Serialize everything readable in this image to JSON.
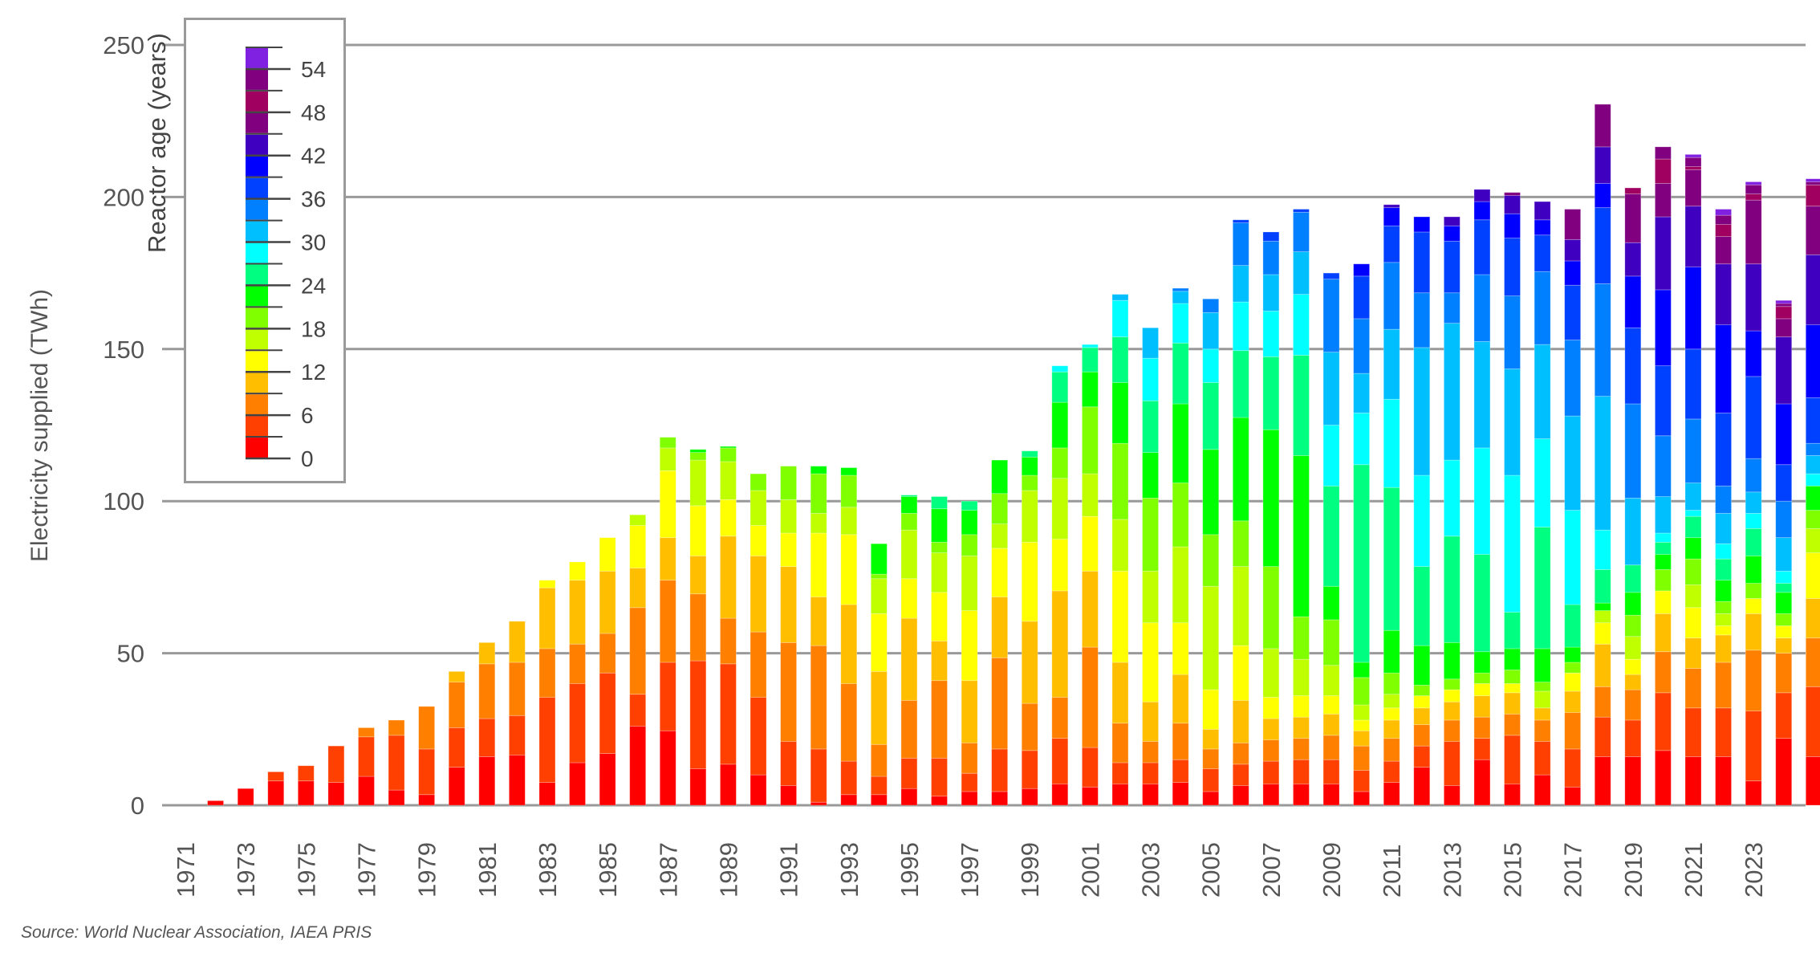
{
  "chart_data": {
    "type": "bar",
    "stacked": true,
    "title": "",
    "xlabel": "",
    "ylabel": "Electricity supplied (TWh)",
    "ylim": [
      0,
      250
    ],
    "yticks": [
      0,
      50,
      100,
      150,
      200,
      250
    ],
    "grid": true,
    "source": "Source: World Nuclear Association, IAEA PRIS",
    "legend": {
      "title": "Reactor age (years)",
      "position": "upper-left",
      "tick_labels": [
        "0",
        "6",
        "12",
        "18",
        "24",
        "30",
        "36",
        "42",
        "48",
        "54"
      ],
      "bins": [
        "0-2",
        "3-5",
        "6-8",
        "9-11",
        "12-14",
        "15-17",
        "18-20",
        "21-23",
        "24-26",
        "27-29",
        "30-32",
        "33-35",
        "36-38",
        "39-41",
        "42-44",
        "45-47",
        "48-50",
        "51-53",
        "54-56"
      ],
      "colors": [
        "#ff0000",
        "#ff4000",
        "#ff8000",
        "#ffbf00",
        "#ffff00",
        "#bfff00",
        "#80ff00",
        "#00ff00",
        "#00ff80",
        "#00ffff",
        "#00bfff",
        "#0080ff",
        "#0040ff",
        "#0000ff",
        "#4000c0",
        "#800080",
        "#a00060",
        "#800080",
        "#8020e0"
      ]
    },
    "x_tick_labels": [
      "1971",
      "1973",
      "1975",
      "1977",
      "1979",
      "1981",
      "1983",
      "1985",
      "1987",
      "1989",
      "1991",
      "1993",
      "1995",
      "1997",
      "1999",
      "2001",
      "2003",
      "2005",
      "2007",
      "2009",
      "2011",
      "2013",
      "2015",
      "2017",
      "2019",
      "2021",
      "2023"
    ],
    "categories": [
      "1971",
      "1972",
      "1973",
      "1974",
      "1975",
      "1976",
      "1977",
      "1978",
      "1979",
      "1980",
      "1981",
      "1982",
      "1983",
      "1984",
      "1985",
      "1986",
      "1987",
      "1988",
      "1989",
      "1990",
      "1991",
      "1992",
      "1993",
      "1994",
      "1995",
      "1996",
      "1997",
      "1998",
      "1999",
      "2000",
      "2001",
      "2002",
      "2003",
      "2004",
      "2005",
      "2006",
      "2007",
      "2008",
      "2009",
      "2010",
      "2011",
      "2012",
      "2013",
      "2014",
      "2015",
      "2016",
      "2017",
      "2018",
      "2019",
      "2020",
      "2021",
      "2022",
      "2023",
      "2024"
    ],
    "segments": [
      [
        0
      ],
      [
        1.5
      ],
      [
        5.5
      ],
      [
        8,
        3
      ],
      [
        8,
        5
      ],
      [
        7.5,
        12
      ],
      [
        9.5,
        13,
        3
      ],
      [
        5,
        18,
        5
      ],
      [
        3.5,
        15,
        14
      ],
      [
        12.5,
        13,
        15,
        3.5
      ],
      [
        16,
        12.5,
        18,
        7
      ],
      [
        16.5,
        13,
        17.5,
        13.5
      ],
      [
        7.5,
        28,
        16,
        20,
        2.5
      ],
      [
        14,
        26,
        13,
        21,
        6
      ],
      [
        17,
        26.5,
        13,
        20.5,
        11
      ],
      [
        26,
        10.5,
        28.5,
        13,
        14,
        3.5
      ],
      [
        24.5,
        22.5,
        27,
        14,
        22,
        7.5,
        3.5
      ],
      [
        12,
        35.5,
        22,
        12.5,
        16.5,
        15,
        2.5,
        1
      ],
      [
        13.5,
        33,
        15,
        27,
        12,
        12.5,
        4.5,
        0.5
      ],
      [
        10,
        25.5,
        21.5,
        25,
        10,
        11.5,
        5.5
      ],
      [
        6.5,
        14.5,
        32.5,
        25,
        11,
        11,
        11
      ],
      [
        1,
        17.5,
        34,
        16,
        21,
        6.5,
        13,
        2.5
      ],
      [
        3.5,
        11,
        25.5,
        26,
        23,
        9,
        10.5,
        2.5,
        0
      ],
      [
        3.5,
        6,
        10.5,
        24,
        19,
        11.5,
        1.5,
        10,
        0
      ],
      [
        5.5,
        10,
        19,
        27,
        13,
        16,
        5.5,
        5.5,
        0.5
      ],
      [
        3,
        12.5,
        25.5,
        13,
        16,
        13,
        3.5,
        11,
        4
      ],
      [
        4.5,
        6,
        10,
        20.5,
        23,
        18,
        7,
        8,
        3,
        0
      ],
      [
        4.5,
        14,
        30,
        20,
        16,
        8,
        10,
        11
      ],
      [
        5.5,
        12.5,
        15.5,
        27,
        26,
        17,
        5,
        6,
        2,
        0
      ],
      [
        7,
        15,
        13.5,
        35,
        17,
        20,
        10,
        15,
        10,
        2
      ],
      [
        6,
        13,
        33,
        25,
        18,
        14,
        22,
        11.5,
        8,
        1
      ],
      [
        7,
        7,
        13,
        20,
        30,
        17,
        25,
        20,
        15,
        12,
        2
      ],
      [
        7,
        7,
        7,
        13,
        26,
        17,
        24,
        15,
        17,
        14,
        10
      ],
      [
        7.5,
        7.5,
        12,
        16,
        17,
        25,
        21,
        26,
        20,
        13,
        4,
        1
      ],
      [
        4.5,
        7.5,
        6.5,
        6.5,
        13,
        34,
        17,
        28,
        22,
        11,
        12,
        4.5
      ],
      [
        6.5,
        7,
        7,
        14,
        18,
        26,
        15,
        34,
        22,
        16,
        12,
        14,
        1
      ],
      [
        7,
        7.5,
        7,
        7,
        7,
        16,
        27,
        45,
        24,
        15,
        12,
        11,
        3
      ],
      [
        7,
        8,
        7,
        7,
        7,
        12,
        14,
        53,
        33,
        20,
        14,
        13,
        1
      ],
      [
        7,
        8,
        8,
        7,
        6,
        10,
        15,
        11,
        33,
        20,
        24,
        24,
        2
      ],
      [
        4.5,
        7,
        8,
        5,
        3.5,
        5,
        9,
        5,
        65,
        17,
        13,
        18,
        14,
        4,
        0
      ],
      [
        7.5,
        7,
        7.5,
        6,
        4,
        4.5,
        7,
        14,
        47,
        29,
        23,
        22,
        12,
        6,
        1
      ],
      [
        12.5,
        7,
        7,
        5.5,
        4,
        0,
        3.5,
        13,
        26,
        30,
        42,
        18,
        20,
        5
      ],
      [
        6.5,
        14.5,
        7,
        6,
        4,
        0,
        3.5,
        12,
        35,
        25,
        45,
        10,
        17,
        5,
        3
      ],
      [
        15,
        7,
        7,
        7,
        4,
        0,
        3.5,
        7,
        32,
        35,
        35,
        22,
        18,
        6,
        4
      ],
      [
        7,
        16,
        7,
        7,
        3,
        0,
        4.5,
        7,
        12,
        45,
        35,
        24,
        19,
        8,
        6,
        1
      ],
      [
        10,
        11,
        7,
        4,
        0,
        5.5,
        3,
        11,
        40,
        29,
        31,
        24,
        12,
        5,
        6
      ],
      [
        6,
        12.5,
        12,
        7,
        6,
        0,
        3.5,
        5,
        14,
        31,
        31,
        25,
        18,
        8,
        7,
        10
      ],
      [
        16,
        13,
        10,
        14,
        7,
        4,
        0,
        2.5,
        11,
        13,
        44,
        37,
        25,
        8,
        12,
        14
      ],
      [
        16,
        12,
        10,
        5,
        5,
        7.5,
        7,
        7.5,
        9,
        0,
        22,
        31,
        25,
        17,
        11,
        16,
        2
      ],
      [
        18,
        19,
        13.5,
        12.5,
        7.5,
        0,
        7,
        5,
        4,
        3,
        12,
        20,
        23,
        25,
        24,
        11,
        8,
        4
      ],
      [
        16,
        16,
        13,
        10,
        10,
        7.5,
        8.5,
        7,
        7,
        2,
        9,
        21,
        23,
        27,
        20,
        12,
        1,
        3,
        1
      ],
      [
        16,
        16,
        15,
        9,
        3,
        4,
        4,
        7,
        7,
        5,
        10,
        9,
        24,
        29,
        20,
        9,
        4,
        3,
        2
      ],
      [
        8,
        23,
        20,
        12,
        5,
        0,
        5,
        9,
        9,
        5,
        7,
        11,
        27,
        15,
        22,
        21,
        2,
        3,
        1
      ],
      [
        22,
        15,
        13,
        5,
        4,
        0,
        4,
        7,
        3,
        4,
        11,
        12,
        12,
        20,
        22,
        6,
        4,
        1,
        1
      ],
      [
        16,
        23,
        16,
        13,
        15,
        8,
        6,
        8,
        0,
        4,
        6,
        4,
        15,
        24,
        23,
        16,
        7,
        1,
        1
      ]
    ]
  }
}
